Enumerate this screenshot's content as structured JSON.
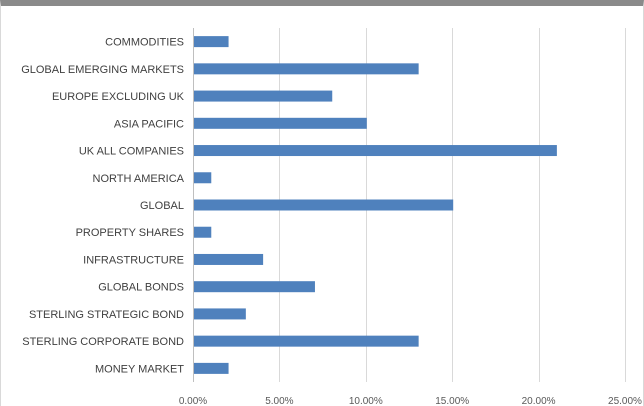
{
  "chart_data": {
    "type": "bar",
    "orientation": "horizontal",
    "categories": [
      "COMMODITIES",
      "GLOBAL EMERGING MARKETS",
      "EUROPE EXCLUDING UK",
      "ASIA PACIFIC",
      "UK ALL COMPANIES",
      "NORTH AMERICA",
      "GLOBAL",
      "PROPERTY SHARES",
      "INFRASTRUCTURE",
      "GLOBAL BONDS",
      "STERLING STRATEGIC BOND",
      "STERLING CORPORATE BOND",
      "MONEY MARKET"
    ],
    "values": [
      2,
      13,
      8,
      10,
      21,
      1,
      15,
      1,
      4,
      7,
      3,
      13,
      2
    ],
    "value_unit": "percent",
    "xlim": [
      0,
      25
    ],
    "x_ticks": [
      0,
      5,
      10,
      15,
      20,
      25
    ],
    "x_tick_labels": [
      "0.00%",
      "5.00%",
      "10.00%",
      "15.00%",
      "20.00%",
      "25.00%"
    ],
    "title": "",
    "xlabel": "",
    "ylabel": "",
    "grid": "vertical",
    "legend": "none",
    "bar_color": "#4f81bd"
  }
}
